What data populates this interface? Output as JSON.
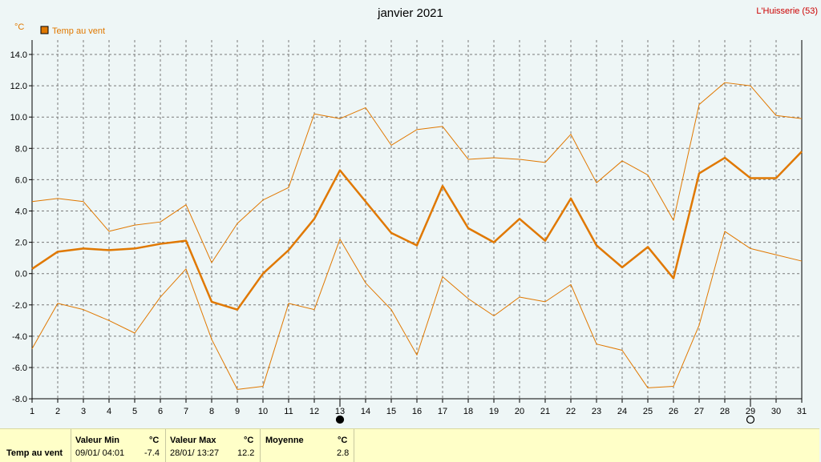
{
  "header": {
    "title": "janvier 2021",
    "station": "L'Huisserie (53)",
    "unit": "°C"
  },
  "legend": {
    "label": "Temp au vent",
    "color": "#e07800"
  },
  "moon_phases": [
    {
      "day": 13,
      "phase": "new"
    },
    {
      "day": 29,
      "phase": "full"
    }
  ],
  "chart_data": {
    "type": "line",
    "x": [
      1,
      2,
      3,
      4,
      5,
      6,
      7,
      8,
      9,
      10,
      11,
      12,
      13,
      14,
      15,
      16,
      17,
      18,
      19,
      20,
      21,
      22,
      23,
      24,
      25,
      26,
      27,
      28,
      29,
      30,
      31
    ],
    "x_tick_labels": [
      "1",
      "2",
      "3",
      "4",
      "5",
      "6",
      "7",
      "8",
      "9",
      "10",
      "11",
      "12",
      "13",
      "14",
      "15",
      "16",
      "17",
      "18",
      "19",
      "20",
      "21",
      "22",
      "23",
      "24",
      "25",
      "26",
      "27",
      "28",
      "29",
      "30",
      "31"
    ],
    "ylim": [
      -8,
      15
    ],
    "y_ticks": [
      14,
      12,
      10,
      8,
      6,
      4,
      2,
      0,
      -2,
      -4,
      -6,
      -8
    ],
    "y_tick_labels": [
      "14.0",
      "12.0",
      "10.0",
      "8.0",
      "6.0",
      "4.0",
      "2.0",
      "0.0",
      "-2.0",
      "-4.0",
      "-6.0",
      "-8.0"
    ],
    "grid": true,
    "color": "#e07800",
    "series": [
      {
        "name": "Temp au vent",
        "role": "mean",
        "values": [
          0.3,
          1.4,
          1.6,
          1.5,
          1.6,
          1.9,
          2.1,
          -1.8,
          -2.3,
          0.0,
          1.5,
          3.5,
          6.6,
          4.6,
          2.6,
          1.8,
          5.6,
          2.9,
          2.0,
          3.5,
          2.1,
          4.8,
          1.8,
          0.4,
          1.7,
          -0.3,
          6.4,
          7.4,
          6.1,
          6.1,
          7.8
        ]
      },
      {
        "role": "max",
        "values": [
          4.6,
          4.8,
          4.6,
          2.7,
          3.1,
          3.3,
          4.4,
          0.7,
          3.2,
          4.7,
          5.5,
          10.2,
          9.9,
          10.6,
          8.2,
          9.2,
          9.4,
          7.3,
          7.4,
          7.3,
          7.1,
          8.9,
          5.8,
          7.2,
          6.3,
          3.4,
          10.8,
          12.2,
          12.0,
          10.1,
          9.9
        ]
      },
      {
        "role": "min",
        "values": [
          -4.8,
          -1.9,
          -2.3,
          -3.0,
          -3.8,
          -1.5,
          0.3,
          -4.2,
          -7.4,
          -7.2,
          -1.9,
          -2.3,
          2.2,
          -0.6,
          -2.3,
          -5.2,
          -0.2,
          -1.6,
          -2.7,
          -1.5,
          -1.8,
          -0.7,
          -4.5,
          -4.9,
          -7.3,
          -7.2,
          -3.3,
          2.7,
          1.6,
          1.2,
          0.8
        ]
      }
    ]
  },
  "stats": {
    "row_label": "Temp au vent",
    "min_header": "Valeur Min",
    "max_header": "Valeur Max",
    "avg_header": "Moyenne",
    "unit": "°C",
    "min_time": "09/01/  04:01",
    "min_value": "-7.4",
    "max_time": "28/01/  13:27",
    "max_value": "12.2",
    "avg_value": "2.8"
  }
}
